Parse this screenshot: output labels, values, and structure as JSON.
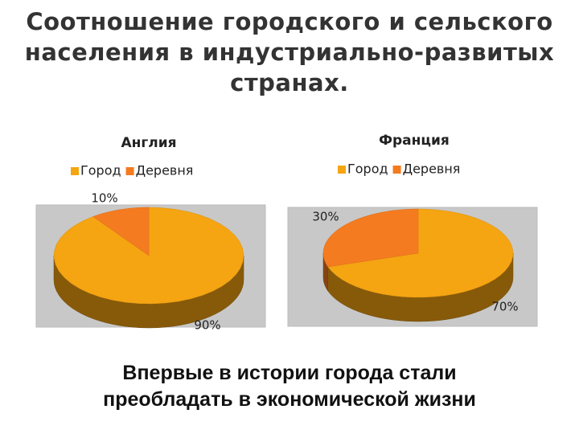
{
  "title": "Соотношение городского и сельского населения в индустриально-развитых странах.",
  "caption": "Впервые в истории города стали преобладать в экономической жизни",
  "chart_data": [
    {
      "type": "pie",
      "title": "Англия",
      "categories": [
        "Город",
        "Деревня"
      ],
      "values": [
        90,
        10
      ],
      "value_labels": [
        "90%",
        "10%"
      ],
      "colors": [
        "#f5a412",
        "#f47b20"
      ],
      "legend": "top"
    },
    {
      "type": "pie",
      "title": "Франция",
      "categories": [
        "Город",
        "Деревня"
      ],
      "values": [
        70,
        30
      ],
      "value_labels": [
        "70%",
        "30%"
      ],
      "colors": [
        "#f5a412",
        "#f47b20"
      ],
      "legend": "top"
    }
  ]
}
